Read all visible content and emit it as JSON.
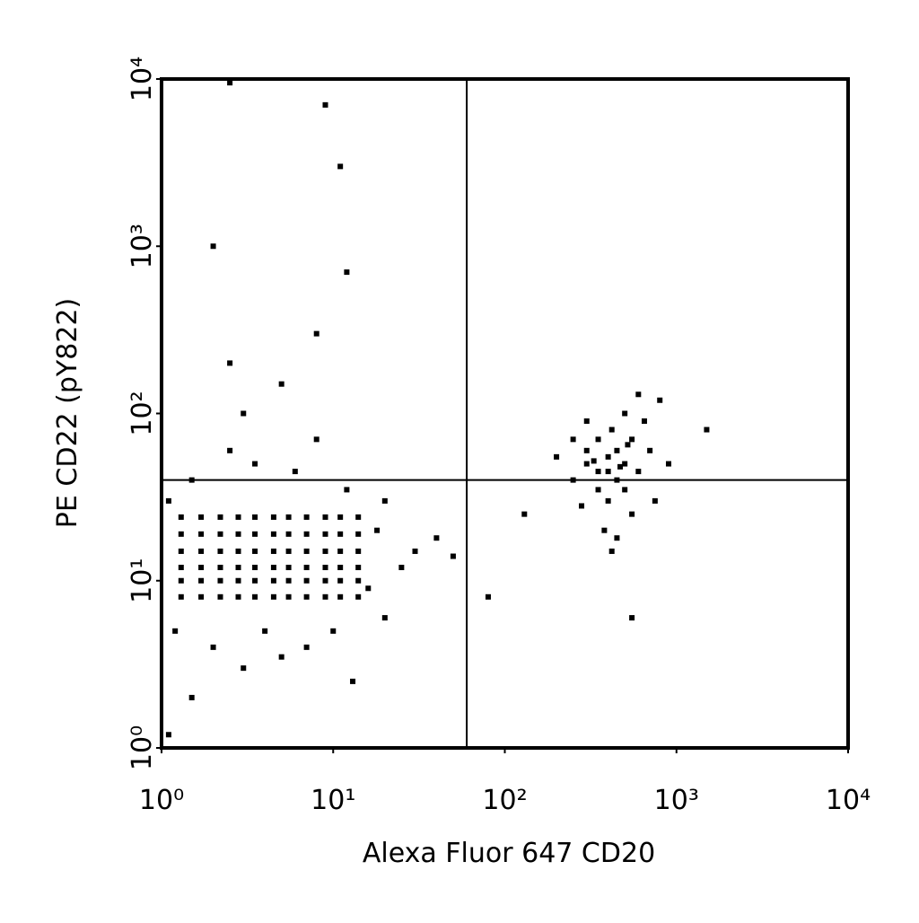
{
  "chart_data": {
    "type": "scatter",
    "x_label": "Alexa Fluor 647 CD20",
    "y_label": "PE CD22 (pY822)",
    "log_scale": true,
    "color": "#000000",
    "xlim": [
      1,
      10000
    ],
    "ylim": [
      1,
      10000
    ],
    "xticks": [
      {
        "value": 1,
        "label": "10⁰"
      },
      {
        "value": 10,
        "label": "10¹"
      },
      {
        "value": 100,
        "label": "10²"
      },
      {
        "value": 1000,
        "label": "10³"
      },
      {
        "value": 10000,
        "label": "10⁴"
      }
    ],
    "yticks": [
      {
        "value": 1,
        "label": "10⁰"
      },
      {
        "value": 10,
        "label": "10¹"
      },
      {
        "value": 100,
        "label": "10²"
      },
      {
        "value": 1000,
        "label": "10³"
      },
      {
        "value": 10000,
        "label": "10⁴"
      }
    ],
    "quadrant_x": 60,
    "quadrant_y": 40,
    "x": [
      1.3,
      1.7,
      2.2,
      2.8,
      3.5,
      4.5,
      5.5,
      7,
      9,
      11,
      14,
      1.3,
      1.7,
      2.2,
      2.8,
      3.5,
      4.5,
      5.5,
      7,
      9,
      11,
      14,
      1.3,
      1.7,
      2.2,
      2.8,
      3.5,
      4.5,
      5.5,
      7,
      9,
      11,
      14,
      1.3,
      1.7,
      2.2,
      2.8,
      3.5,
      4.5,
      5.5,
      7,
      9,
      11,
      14,
      1.3,
      1.7,
      2.2,
      2.8,
      3.5,
      4.5,
      5.5,
      7,
      9,
      11,
      14,
      1.3,
      1.7,
      2.2,
      2.8,
      3.5,
      4.5,
      5.5,
      7,
      9,
      11,
      14,
      1.1,
      1.2,
      1.5,
      2,
      2.5,
      3,
      3.5,
      4,
      5,
      6,
      7,
      8,
      10,
      12,
      16,
      18,
      20,
      25,
      30,
      40,
      50,
      1.5,
      2.5,
      3,
      5,
      8,
      12,
      2,
      11,
      9,
      1.1,
      2.5,
      13,
      20,
      250,
      300,
      350,
      400,
      450,
      500,
      350,
      400,
      300,
      450,
      550,
      600,
      380,
      420,
      500,
      300,
      250,
      650,
      700,
      800,
      450,
      550,
      350,
      400,
      500,
      420,
      600,
      200,
      750,
      900,
      280,
      330,
      470,
      520,
      1500,
      130,
      550,
      80
    ],
    "values": [
      8,
      8,
      8,
      8,
      8,
      8,
      8,
      8,
      8,
      8,
      8,
      10,
      10,
      10,
      10,
      10,
      10,
      10,
      10,
      10,
      10,
      10,
      12,
      12,
      12,
      12,
      12,
      12,
      12,
      12,
      12,
      12,
      12,
      15,
      15,
      15,
      15,
      15,
      15,
      15,
      15,
      15,
      15,
      15,
      19,
      19,
      19,
      19,
      19,
      19,
      19,
      19,
      19,
      19,
      19,
      24,
      24,
      24,
      24,
      24,
      24,
      24,
      24,
      24,
      24,
      24,
      30,
      5,
      40,
      4,
      60,
      3,
      50,
      5,
      3.5,
      45,
      4,
      70,
      5,
      35,
      9,
      20,
      30,
      12,
      15,
      18,
      14,
      2,
      200,
      100,
      150,
      300,
      700,
      1000,
      3000,
      7000,
      1.2,
      9500,
      2.5,
      6,
      40,
      50,
      45,
      55,
      60,
      50,
      35,
      30,
      60,
      40,
      70,
      45,
      20,
      80,
      100,
      90,
      70,
      90,
      60,
      120,
      18,
      25,
      70,
      45,
      35,
      15,
      130,
      55,
      30,
      50,
      28,
      52,
      48,
      65,
      80,
      25,
      6,
      8
    ]
  }
}
